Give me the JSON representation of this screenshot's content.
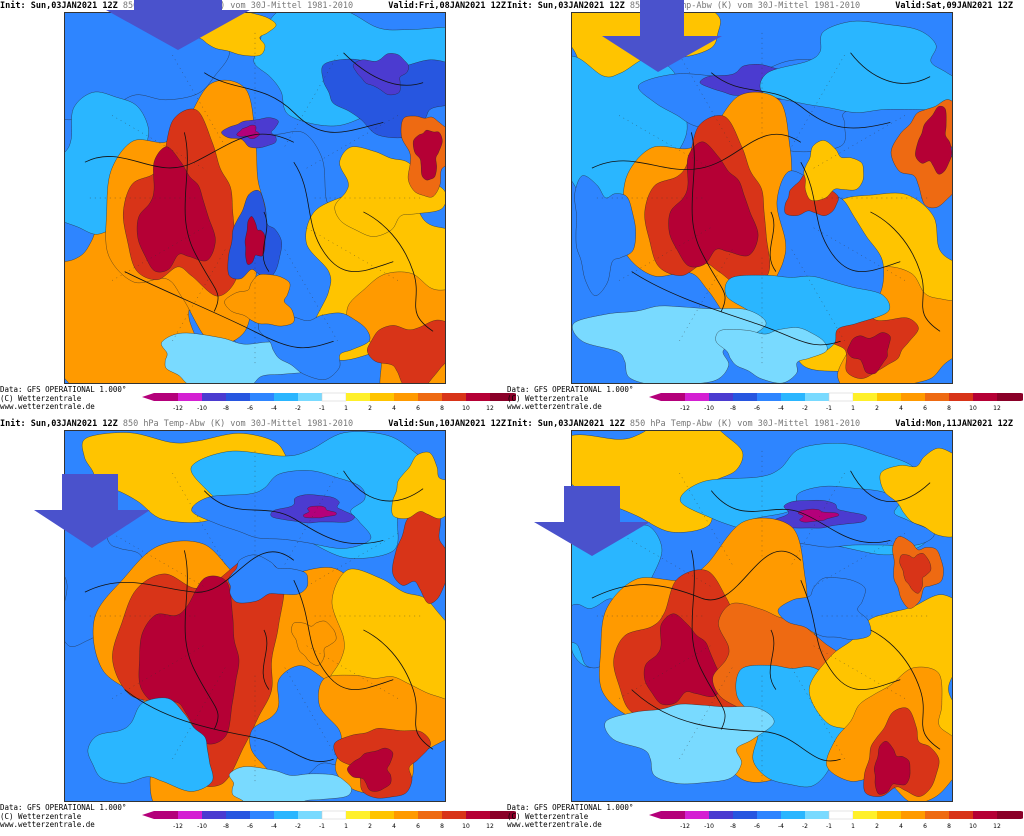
{
  "common": {
    "init_label": "Init:",
    "init_value": "Sun,03JAN2021 12Z",
    "title": "850 hPa Temp-Abw (K) vom 30J-Mittel 1981-2010",
    "valid_label": "Valid:",
    "credit_data": "Data: GFS OPERATIONAL 1.000°",
    "credit_copy": "(C) Wetterzentrale",
    "credit_url": "www.wetterzentrale.de"
  },
  "panels": [
    {
      "valid_value": "Fri,08JAN2021 12Z"
    },
    {
      "valid_value": "Sat,09JAN2021 12Z"
    },
    {
      "valid_value": "Sun,10JAN2021 12Z"
    },
    {
      "valid_value": "Mon,11JAN2021 12Z"
    }
  ],
  "legend": {
    "ticks": [
      "-12",
      "-10",
      "-8",
      "-6",
      "-4",
      "-2",
      "-1",
      "1",
      "2",
      "4",
      "6",
      "8",
      "10",
      "12"
    ],
    "colors": [
      "#b4007a",
      "#d41fd2",
      "#4b3bd0",
      "#2756e0",
      "#2e85ff",
      "#2ab6ff",
      "#79daff",
      "#ffffff",
      "#fff02a",
      "#ffc400",
      "#ff9a00",
      "#ee6a12",
      "#d83418",
      "#b50035",
      "#8a0028"
    ]
  },
  "arrow_color": "#4a52cc"
}
